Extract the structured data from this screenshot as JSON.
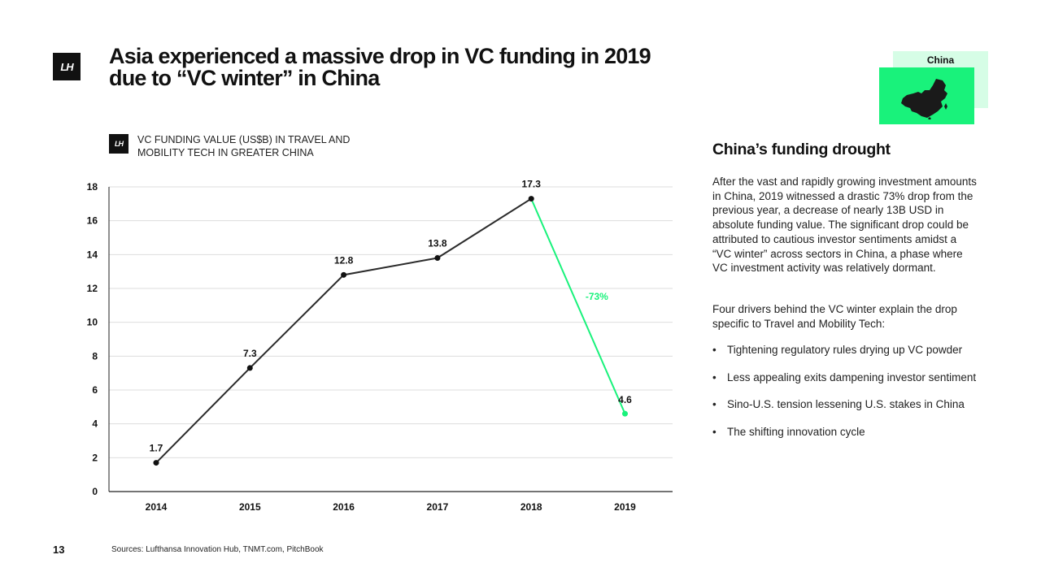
{
  "logo_text": "LH",
  "title_line1": "Asia experienced a massive drop in VC funding in 2019",
  "title_line2": "due to “VC winter” in China",
  "chart_heading_line1": "VC FUNDING VALUE (US$B) IN TRAVEL AND",
  "chart_heading_line2": "MOBILITY TECH IN GREATER CHINA",
  "region": {
    "label": "China",
    "map_icon": "china-map-icon"
  },
  "sidebar": {
    "title": "China’s funding drought",
    "paragraph1": "After the vast and rapidly growing investment amounts in China, 2019 witnessed a drastic 73% drop from the previous year, a decrease of nearly 13B USD in absolute funding value. The significant drop could be attributed to cautious investor sentiments amidst a “VC winter” across sectors in China, a phase where VC investment activity was relatively dormant.",
    "paragraph2": "Four drivers behind the VC winter explain the drop specific to Travel and Mobility Tech:",
    "bullet_symbol": "•",
    "bullets": [
      "Tightening regulatory rules drying up VC powder",
      "Less appealing exits dampening investor sentiment",
      "Sino-U.S. tension lessening U.S. stakes in China",
      "The shifting innovation cycle"
    ]
  },
  "page_number": "13",
  "sources": "Sources: Lufthansa Innovation Hub, TNMT.com, PitchBook",
  "colors": {
    "accent": "#19f27b",
    "accent_light": "#d6fde6",
    "line": "#2b2b2b",
    "grid": "#dddddd"
  },
  "chart_data": {
    "type": "line",
    "title": "VC FUNDING VALUE (US$B) IN TRAVEL AND MOBILITY TECH IN GREATER CHINA",
    "xlabel": "",
    "ylabel": "",
    "categories": [
      "2014",
      "2015",
      "2016",
      "2017",
      "2018",
      "2019"
    ],
    "series": [
      {
        "name": "VC funding value (US$B)",
        "values": [
          1.7,
          7.3,
          12.8,
          13.8,
          17.3,
          4.6
        ]
      }
    ],
    "data_labels": [
      "1.7",
      "7.3",
      "12.8",
      "13.8",
      "17.3",
      "4.6"
    ],
    "ylim": [
      0,
      18
    ],
    "yticks": [
      0,
      2,
      4,
      6,
      8,
      10,
      12,
      14,
      16,
      18
    ],
    "ytick_labels": [
      "0",
      "2",
      "4",
      "6",
      "8",
      "10",
      "12",
      "14",
      "16",
      "18"
    ],
    "grid": true,
    "highlight_segment": {
      "from": "2018",
      "to": "2019",
      "color": "#19f27b"
    },
    "annotations": [
      {
        "text": "-73%",
        "between": [
          "2018",
          "2019"
        ]
      }
    ]
  }
}
